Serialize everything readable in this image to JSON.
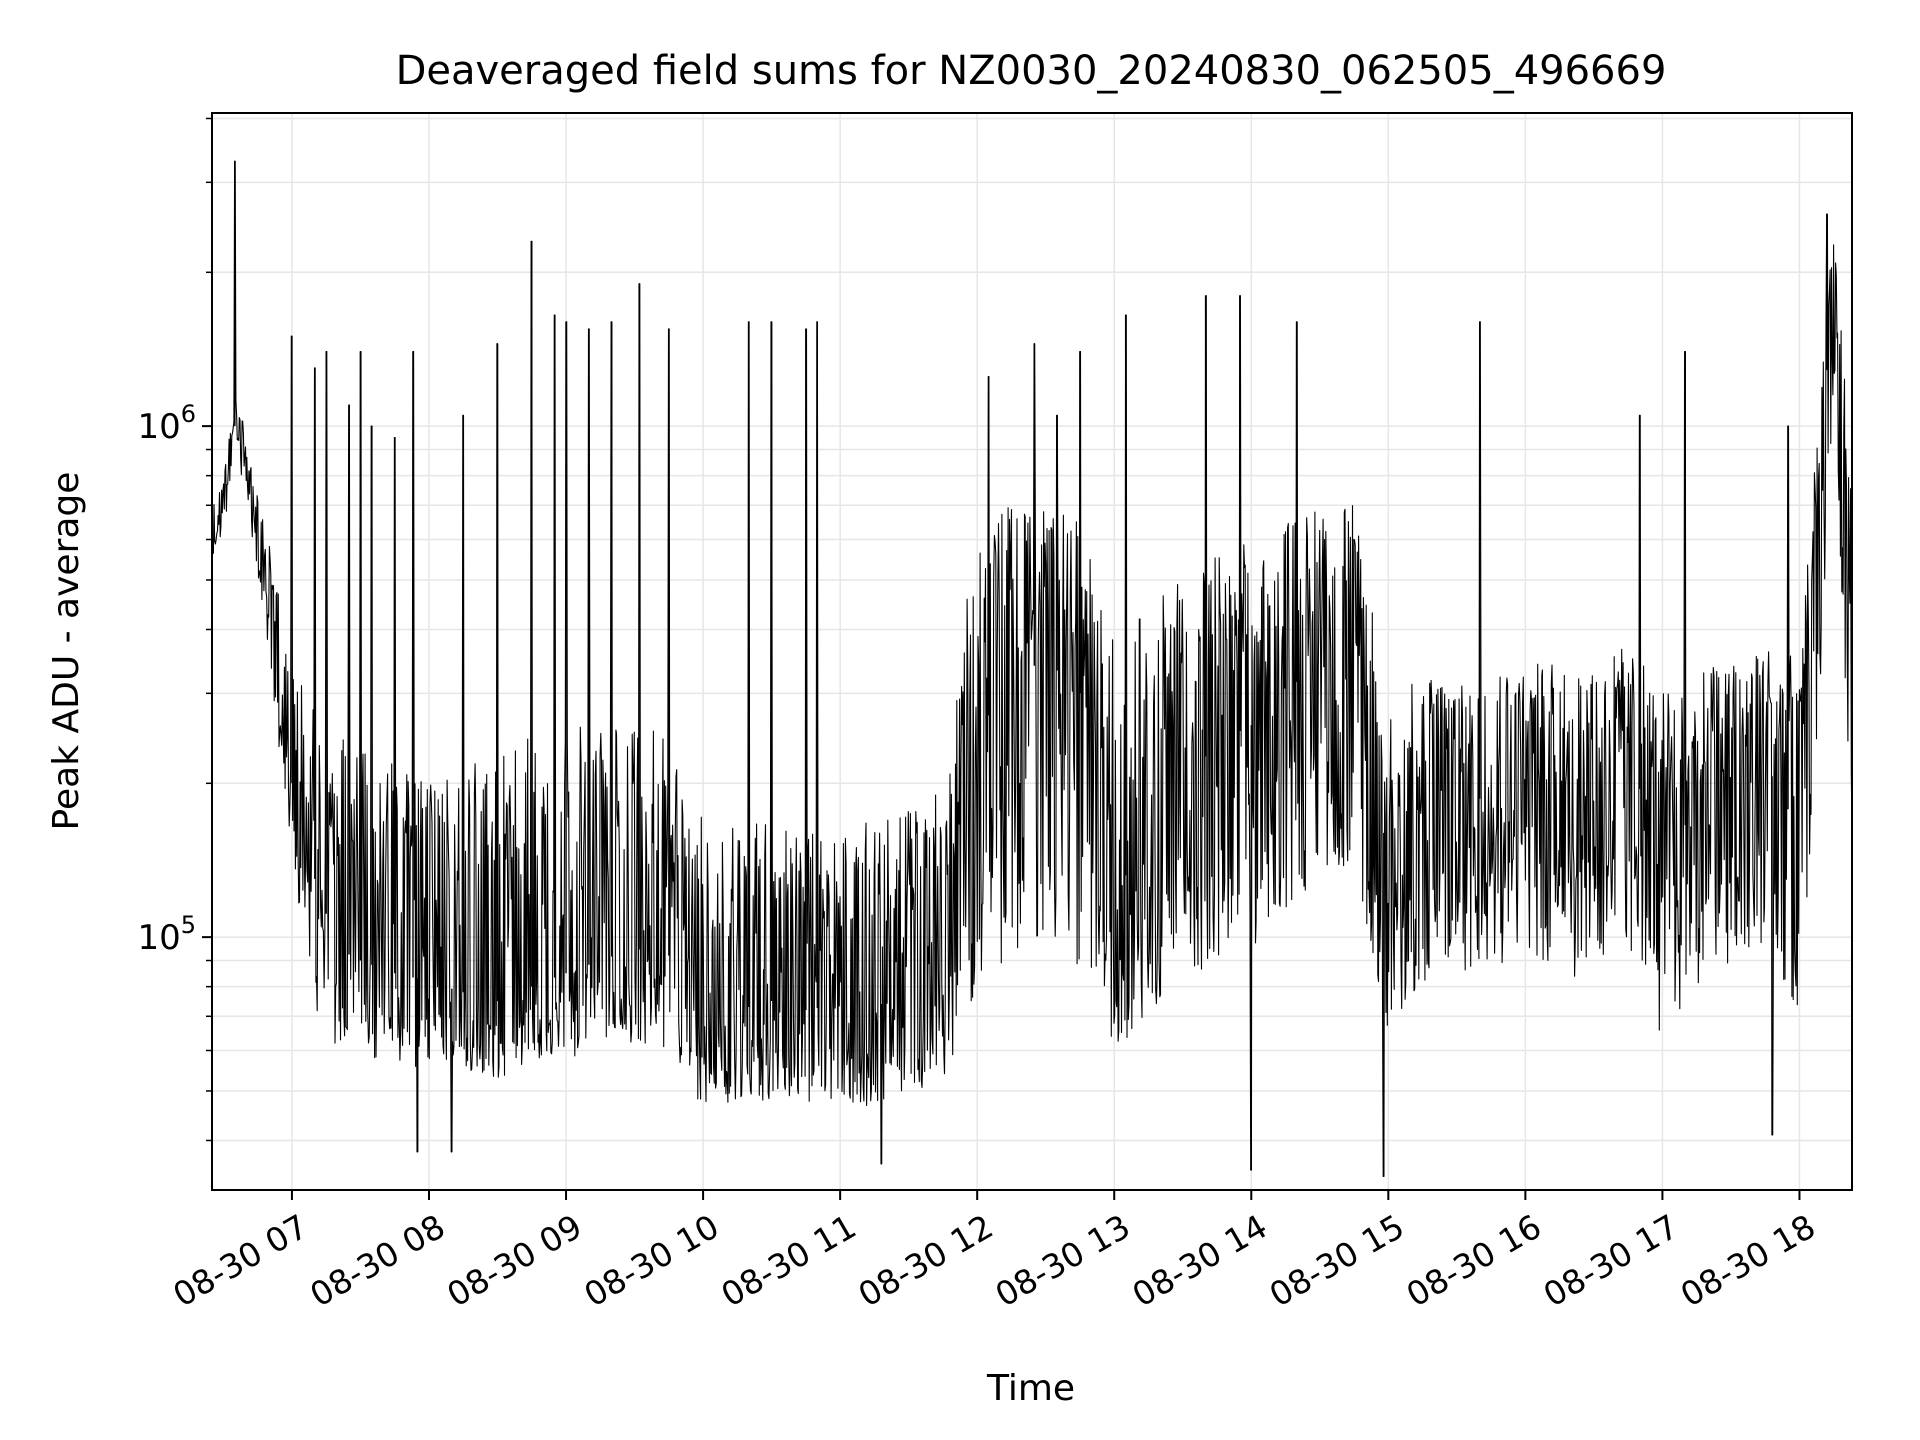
{
  "chart_data": {
    "type": "line",
    "title": "Deaveraged field sums for NZ0030_20240830_062505_496669",
    "xlabel": "Time",
    "ylabel": "Peak ADU - average",
    "yscale": "log",
    "grid": true,
    "xlim": [
      "2024-08-30 06:25",
      "2024-08-30 18:23"
    ],
    "ylim": [
      32000,
      4100000
    ],
    "x_ticks": [
      {
        "t": "2024-08-30 07:00",
        "label": "08-30 07"
      },
      {
        "t": "2024-08-30 08:00",
        "label": "08-30 08"
      },
      {
        "t": "2024-08-30 09:00",
        "label": "08-30 09"
      },
      {
        "t": "2024-08-30 10:00",
        "label": "08-30 10"
      },
      {
        "t": "2024-08-30 11:00",
        "label": "08-30 11"
      },
      {
        "t": "2024-08-30 12:00",
        "label": "08-30 12"
      },
      {
        "t": "2024-08-30 13:00",
        "label": "08-30 13"
      },
      {
        "t": "2024-08-30 14:00",
        "label": "08-30 14"
      },
      {
        "t": "2024-08-30 15:00",
        "label": "08-30 15"
      },
      {
        "t": "2024-08-30 16:00",
        "label": "08-30 16"
      },
      {
        "t": "2024-08-30 17:00",
        "label": "08-30 17"
      },
      {
        "t": "2024-08-30 18:00",
        "label": "08-30 18"
      }
    ],
    "y_ticks": [
      {
        "value": 100000,
        "base": "10",
        "exp": "5"
      },
      {
        "value": 1000000,
        "base": "10",
        "exp": "6"
      }
    ],
    "series": [
      {
        "color": "#000000",
        "x": [
          "2024-08-30 06:25",
          "2024-08-30 06:30",
          "2024-08-30 06:35",
          "2024-08-30 06:40",
          "2024-08-30 06:45",
          "2024-08-30 06:50",
          "2024-08-30 06:55",
          "2024-08-30 07:00",
          "2024-08-30 07:10",
          "2024-08-30 07:20",
          "2024-08-30 07:30",
          "2024-08-30 07:45",
          "2024-08-30 08:00",
          "2024-08-30 08:15",
          "2024-08-30 08:30",
          "2024-08-30 08:45",
          "2024-08-30 09:00",
          "2024-08-30 09:15",
          "2024-08-30 09:30",
          "2024-08-30 09:45",
          "2024-08-30 10:00",
          "2024-08-30 10:15",
          "2024-08-30 10:30",
          "2024-08-30 10:45",
          "2024-08-30 11:00",
          "2024-08-30 11:15",
          "2024-08-30 11:30",
          "2024-08-30 11:45",
          "2024-08-30 12:00",
          "2024-08-30 12:15",
          "2024-08-30 12:30",
          "2024-08-30 12:45",
          "2024-08-30 13:00",
          "2024-08-30 13:15",
          "2024-08-30 13:30",
          "2024-08-30 13:45",
          "2024-08-30 14:00",
          "2024-08-30 14:15",
          "2024-08-30 14:30",
          "2024-08-30 14:45",
          "2024-08-30 15:00",
          "2024-08-30 15:15",
          "2024-08-30 15:30",
          "2024-08-30 15:45",
          "2024-08-30 16:00",
          "2024-08-30 16:15",
          "2024-08-30 16:30",
          "2024-08-30 16:45",
          "2024-08-30 17:00",
          "2024-08-30 17:15",
          "2024-08-30 17:30",
          "2024-08-30 17:45",
          "2024-08-30 18:00",
          "2024-08-30 18:10",
          "2024-08-30 18:15",
          "2024-08-30 18:23"
        ],
        "y": [
          620000,
          700000,
          1000000,
          850000,
          600000,
          450000,
          300000,
          200000,
          130000,
          95000,
          90000,
          85000,
          82000,
          78000,
          75000,
          80000,
          85000,
          90000,
          95000,
          92000,
          70000,
          72000,
          75000,
          72000,
          74000,
          73000,
          78000,
          80000,
          250000,
          320000,
          350000,
          300000,
          120000,
          160000,
          200000,
          240000,
          260000,
          300000,
          350000,
          380000,
          140000,
          170000,
          180000,
          190000,
          200000,
          190000,
          180000,
          230000,
          140000,
          180000,
          200000,
          220000,
          160000,
          900000,
          2200000,
          300000
        ],
        "upper": [
          750000,
          800000,
          1150000,
          1000000,
          720000,
          600000,
          450000,
          350000,
          280000,
          250000,
          230000,
          220000,
          200000,
          220000,
          240000,
          260000,
          260000,
          260000,
          270000,
          240000,
          170000,
          180000,
          170000,
          160000,
          160000,
          170000,
          180000,
          200000,
          650000,
          700000,
          700000,
          650000,
          380000,
          450000,
          500000,
          560000,
          600000,
          650000,
          700000,
          700000,
          300000,
          320000,
          330000,
          340000,
          350000,
          340000,
          330000,
          380000,
          300000,
          330000,
          360000,
          380000,
          350000,
          1400000,
          2400000,
          800000
        ],
        "lower": [
          550000,
          620000,
          850000,
          700000,
          500000,
          360000,
          220000,
          140000,
          70000,
          60000,
          58000,
          56000,
          55000,
          54000,
          53000,
          56000,
          58000,
          60000,
          62000,
          60000,
          46000,
          47000,
          48000,
          47000,
          46000,
          47000,
          50000,
          52000,
          80000,
          90000,
          95000,
          88000,
          60000,
          70000,
          80000,
          90000,
          95000,
          110000,
          130000,
          140000,
          65000,
          80000,
          85000,
          88000,
          90000,
          85000,
          80000,
          95000,
          62000,
          80000,
          90000,
          95000,
          70000,
          300000,
          1200000,
          140000
        ],
        "spikes": [
          {
            "t": "2024-08-30 06:35",
            "v": 3300000
          },
          {
            "t": "2024-08-30 07:00",
            "v": 1500000
          },
          {
            "t": "2024-08-30 07:10",
            "v": 1300000
          },
          {
            "t": "2024-08-30 07:15",
            "v": 1400000
          },
          {
            "t": "2024-08-30 07:25",
            "v": 1100000
          },
          {
            "t": "2024-08-30 07:30",
            "v": 1400000
          },
          {
            "t": "2024-08-30 07:35",
            "v": 1000000
          },
          {
            "t": "2024-08-30 07:45",
            "v": 950000
          },
          {
            "t": "2024-08-30 07:53",
            "v": 1400000
          },
          {
            "t": "2024-08-30 08:15",
            "v": 1050000
          },
          {
            "t": "2024-08-30 08:30",
            "v": 1450000
          },
          {
            "t": "2024-08-30 08:45",
            "v": 2300000
          },
          {
            "t": "2024-08-30 08:55",
            "v": 1650000
          },
          {
            "t": "2024-08-30 09:00",
            "v": 1600000
          },
          {
            "t": "2024-08-30 09:10",
            "v": 1550000
          },
          {
            "t": "2024-08-30 09:20",
            "v": 1600000
          },
          {
            "t": "2024-08-30 09:32",
            "v": 1900000
          },
          {
            "t": "2024-08-30 09:45",
            "v": 1550000
          },
          {
            "t": "2024-08-30 10:20",
            "v": 1600000
          },
          {
            "t": "2024-08-30 10:30",
            "v": 1600000
          },
          {
            "t": "2024-08-30 10:45",
            "v": 1550000
          },
          {
            "t": "2024-08-30 10:50",
            "v": 1600000
          },
          {
            "t": "2024-08-30 12:05",
            "v": 1250000
          },
          {
            "t": "2024-08-30 12:25",
            "v": 1450000
          },
          {
            "t": "2024-08-30 12:35",
            "v": 1050000
          },
          {
            "t": "2024-08-30 12:45",
            "v": 1400000
          },
          {
            "t": "2024-08-30 13:05",
            "v": 1650000
          },
          {
            "t": "2024-08-30 13:40",
            "v": 1800000
          },
          {
            "t": "2024-08-30 13:55",
            "v": 1800000
          },
          {
            "t": "2024-08-30 14:20",
            "v": 1600000
          },
          {
            "t": "2024-08-30 15:40",
            "v": 1600000
          },
          {
            "t": "2024-08-30 16:50",
            "v": 1050000
          },
          {
            "t": "2024-08-30 17:10",
            "v": 1400000
          },
          {
            "t": "2024-08-30 17:55",
            "v": 1000000
          },
          {
            "t": "2024-08-30 18:12",
            "v": 2600000
          }
        ],
        "dips": [
          {
            "t": "2024-08-30 07:55",
            "v": 38000
          },
          {
            "t": "2024-08-30 08:10",
            "v": 38000
          },
          {
            "t": "2024-08-30 11:18",
            "v": 36000
          },
          {
            "t": "2024-08-30 14:00",
            "v": 35000
          },
          {
            "t": "2024-08-30 14:58",
            "v": 34000
          },
          {
            "t": "2024-08-30 17:48",
            "v": 41000
          }
        ]
      }
    ]
  }
}
